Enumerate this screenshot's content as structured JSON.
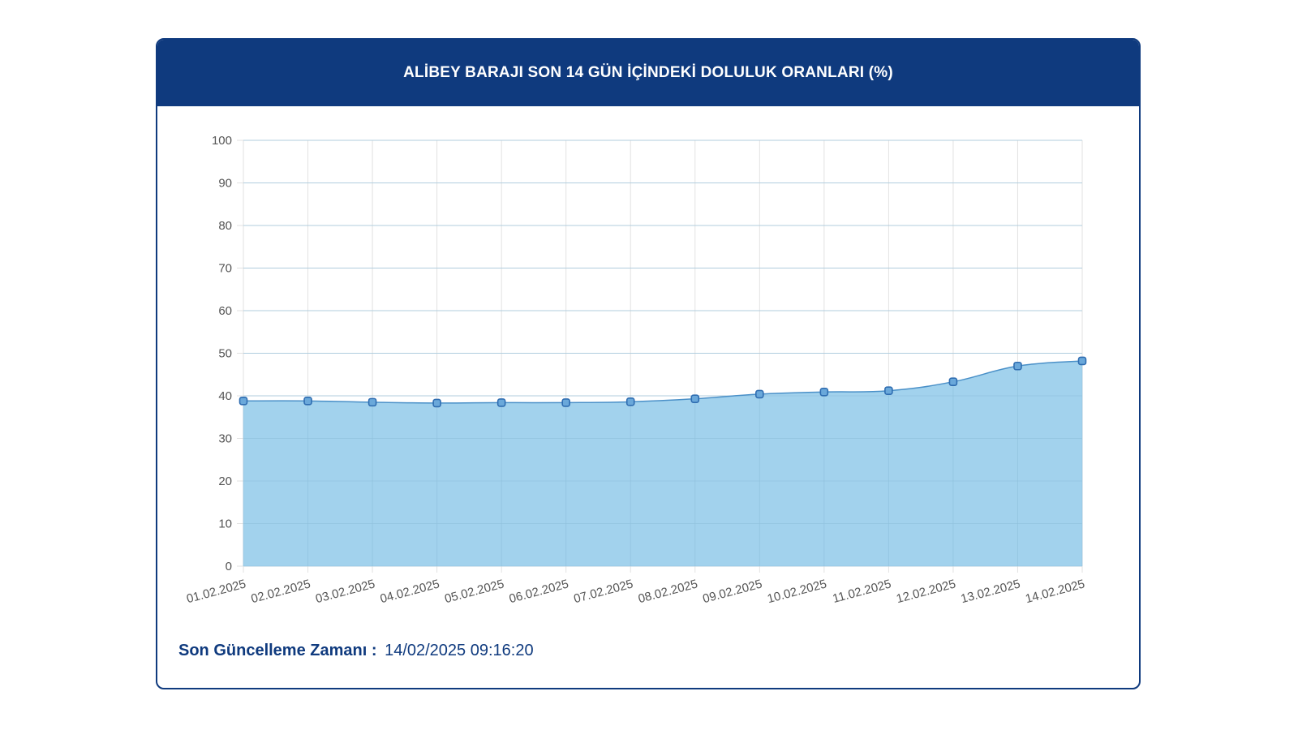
{
  "card": {
    "title": "ALİBEY BARAJI SON 14 GÜN İÇİNDEKİ DOLULUK ORANLARI (%)"
  },
  "footer": {
    "label": "Son Güncelleme Zamanı :",
    "value": "14/02/2025 09:16:20"
  },
  "colors": {
    "header": "#0f3a7e",
    "area_fill": "#9dd0ec",
    "line": "#4a90c8",
    "marker_stroke": "#2f6db1",
    "grid": "#e2e2e2"
  },
  "chart_data": {
    "type": "area",
    "x": [
      "01.02.2025",
      "02.02.2025",
      "03.02.2025",
      "04.02.2025",
      "05.02.2025",
      "06.02.2025",
      "07.02.2025",
      "08.02.2025",
      "09.02.2025",
      "10.02.2025",
      "11.02.2025",
      "12.02.2025",
      "13.02.2025",
      "14.02.2025"
    ],
    "series": [
      {
        "values": [
          38.8,
          38.8,
          38.5,
          38.3,
          38.4,
          38.4,
          38.6,
          39.3,
          40.4,
          40.9,
          41.2,
          43.3,
          47.0,
          48.2
        ]
      }
    ],
    "ylim": [
      0,
      100
    ],
    "yticks": [
      0,
      10,
      20,
      30,
      40,
      50,
      60,
      70,
      80,
      90,
      100
    ],
    "grid": true,
    "title": "",
    "xlabel": "",
    "ylabel": ""
  }
}
